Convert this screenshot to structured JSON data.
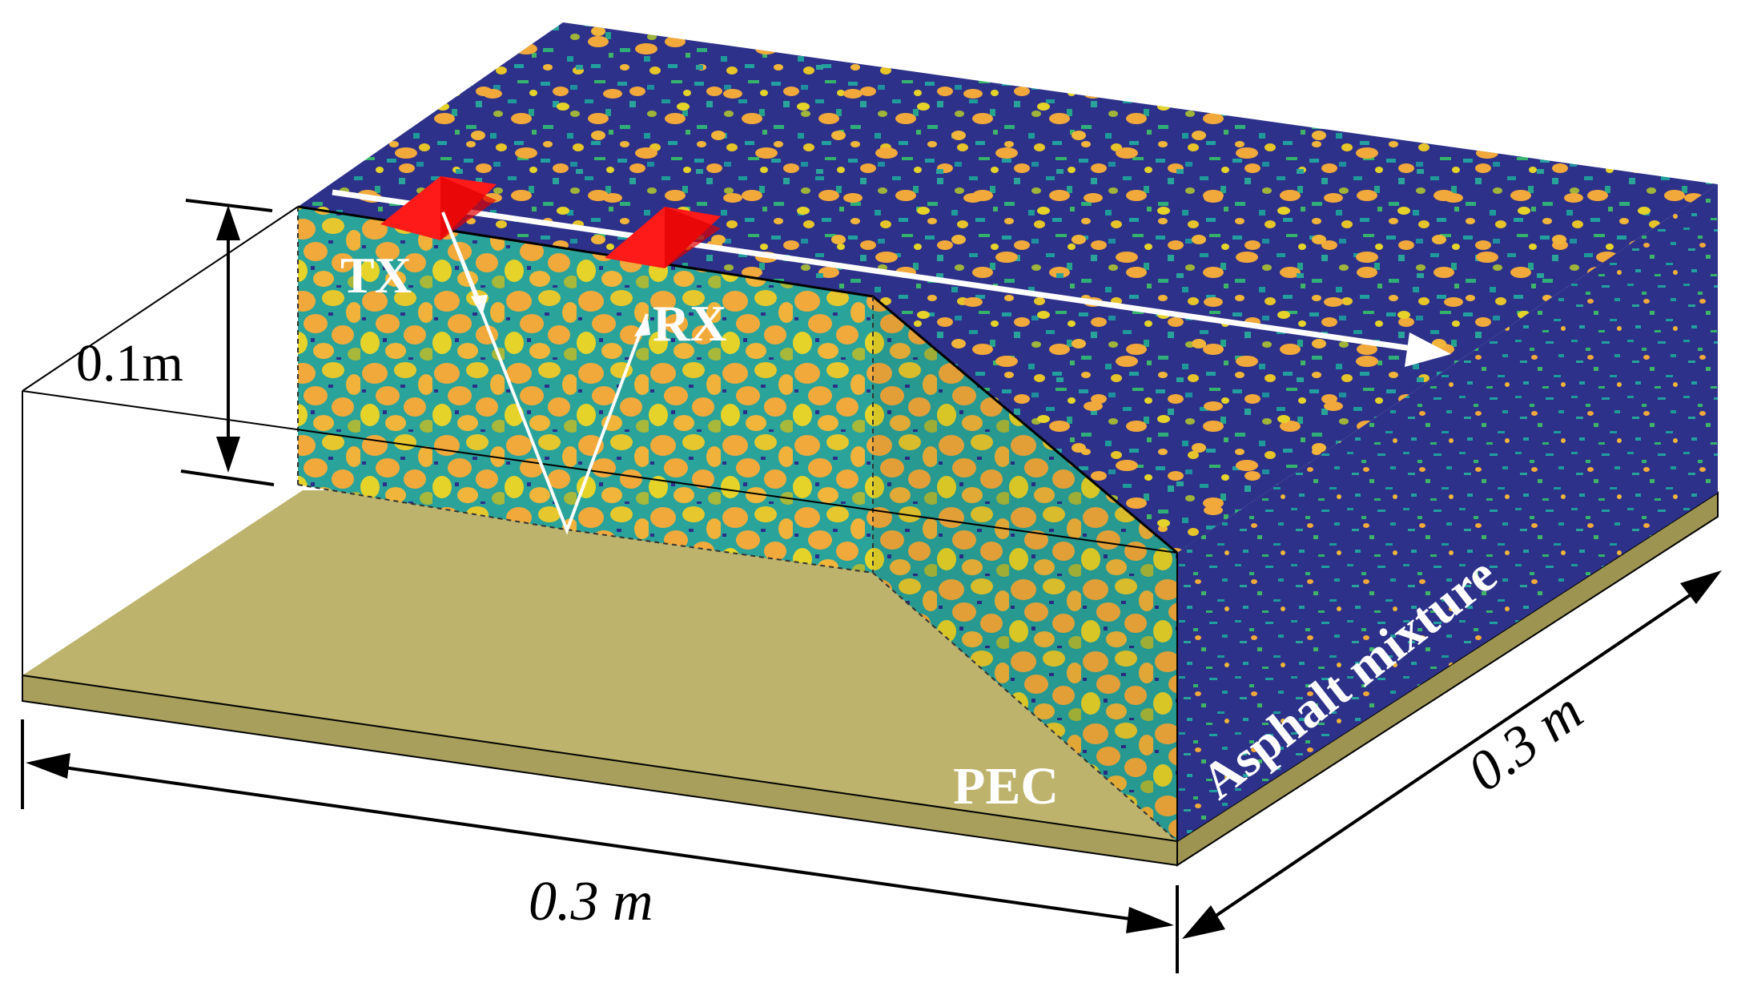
{
  "labels": {
    "tx": "TX",
    "rx": "RX",
    "pec": "PEC",
    "material": "Asphalt mixture",
    "height": "0.1m",
    "width": "0.3 m",
    "depth": "0.3 m"
  },
  "colors": {
    "aggregate_orange": "#f2a93b",
    "aggregate_yellow": "#e6d32a",
    "aggregate_olive": "#a8b83a",
    "binder_navy": "#2b2f8a",
    "binder_teal": "#1f9a9a",
    "binder_green": "#3fb56a",
    "pec_plate": "#bdb36c",
    "pec_edge": "#9e9452",
    "antenna_red": "#ff1a1a",
    "arrow_white": "#ffffff"
  }
}
